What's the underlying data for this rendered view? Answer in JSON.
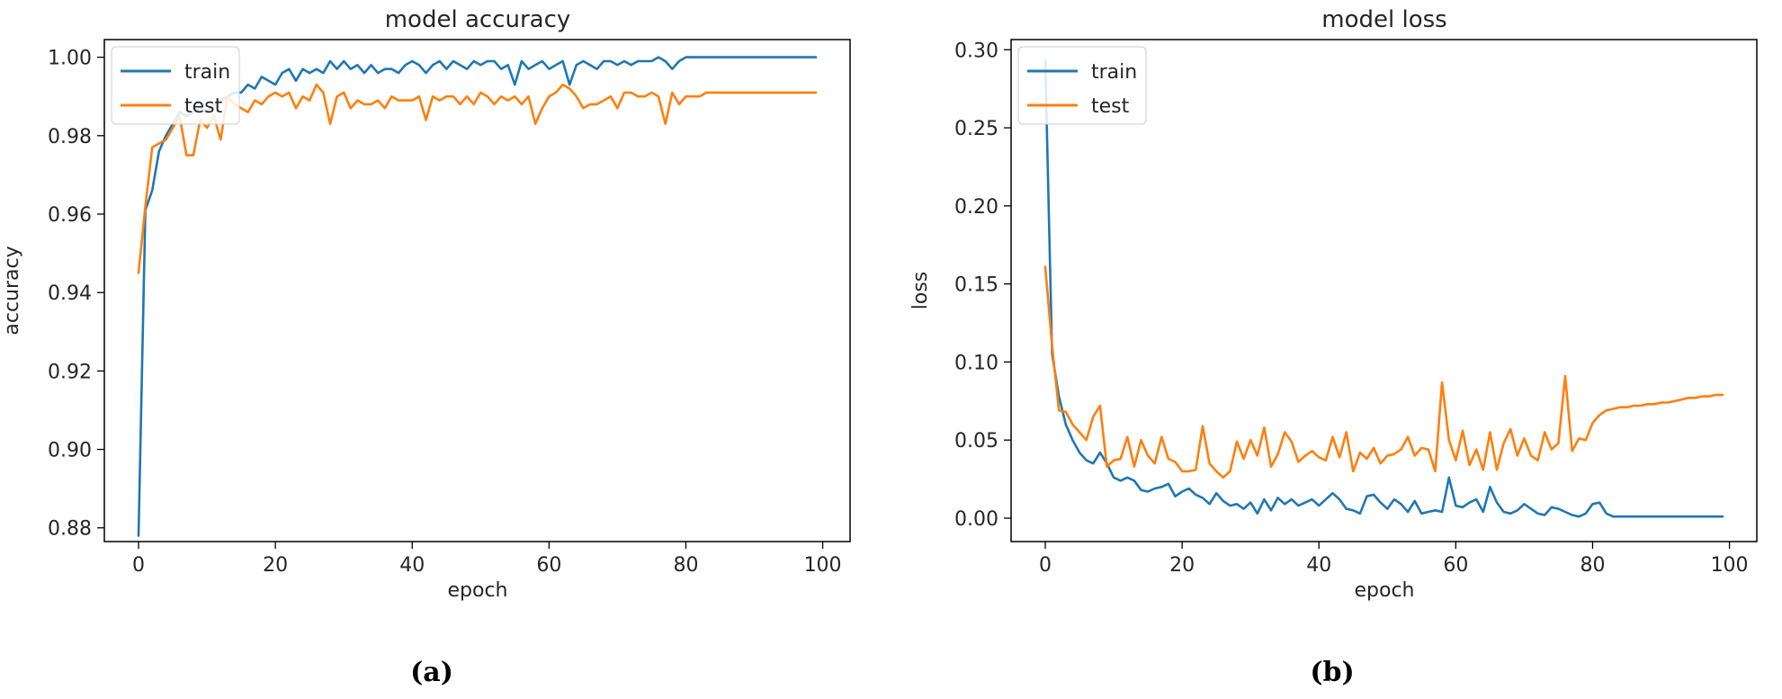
{
  "colors": {
    "train": "#1f77b4",
    "test": "#ff7f0e",
    "axes": "#000000",
    "text": "#262626"
  },
  "chart_data": [
    {
      "id": "acc",
      "type": "line",
      "title": "model accuracy",
      "xlabel": "epoch",
      "ylabel": "accuracy",
      "xlim": [
        -5,
        104
      ],
      "ylim": [
        0.8765,
        1.0045
      ],
      "xticks": [
        0,
        20,
        40,
        60,
        80,
        100
      ],
      "xtick_labels": [
        "0",
        "20",
        "40",
        "60",
        "80",
        "100"
      ],
      "yticks": [
        0.88,
        0.9,
        0.92,
        0.94,
        0.96,
        0.98,
        1.0
      ],
      "ytick_labels": [
        "0.88",
        "0.90",
        "0.92",
        "0.94",
        "0.96",
        "0.98",
        "1.00"
      ],
      "legend": {
        "location": "top-left",
        "entries": [
          "train",
          "test"
        ]
      },
      "caption": "(a)",
      "x": [
        0,
        1,
        2,
        3,
        4,
        5,
        6,
        7,
        8,
        9,
        10,
        11,
        12,
        13,
        14,
        15,
        16,
        17,
        18,
        19,
        20,
        21,
        22,
        23,
        24,
        25,
        26,
        27,
        28,
        29,
        30,
        31,
        32,
        33,
        34,
        35,
        36,
        37,
        38,
        39,
        40,
        41,
        42,
        43,
        44,
        45,
        46,
        47,
        48,
        49,
        50,
        51,
        52,
        53,
        54,
        55,
        56,
        57,
        58,
        59,
        60,
        61,
        62,
        63,
        64,
        65,
        66,
        67,
        68,
        69,
        70,
        71,
        72,
        73,
        74,
        75,
        76,
        77,
        78,
        79,
        80,
        81,
        82,
        83,
        84,
        85,
        86,
        87,
        88,
        89,
        90,
        91,
        92,
        93,
        94,
        95,
        96,
        97,
        98,
        99
      ],
      "series": [
        {
          "name": "train",
          "values": [
            0.878,
            0.961,
            0.966,
            0.976,
            0.98,
            0.983,
            0.986,
            0.985,
            0.986,
            0.987,
            0.986,
            0.988,
            0.989,
            0.99,
            0.991,
            0.991,
            0.993,
            0.992,
            0.995,
            0.994,
            0.993,
            0.996,
            0.997,
            0.994,
            0.997,
            0.996,
            0.997,
            0.996,
            0.999,
            0.997,
            0.999,
            0.997,
            0.998,
            0.996,
            0.998,
            0.996,
            0.997,
            0.997,
            0.996,
            0.998,
            0.999,
            0.998,
            0.996,
            0.998,
            0.999,
            0.997,
            0.999,
            0.998,
            0.997,
            0.999,
            0.998,
            0.999,
            0.999,
            0.997,
            0.998,
            0.993,
            0.999,
            0.997,
            0.998,
            0.999,
            0.997,
            0.998,
            0.999,
            0.993,
            0.998,
            0.999,
            0.998,
            0.997,
            0.999,
            0.999,
            0.998,
            0.999,
            0.998,
            0.999,
            0.999,
            0.999,
            1.0,
            0.999,
            0.997,
            0.999,
            1.0,
            1.0,
            1.0,
            1.0,
            1.0,
            1.0,
            1.0,
            1.0,
            1.0,
            1.0,
            1.0,
            1.0,
            1.0,
            1.0,
            1.0,
            1.0,
            1.0,
            1.0,
            1.0,
            1.0
          ]
        },
        {
          "name": "test",
          "values": [
            0.945,
            0.962,
            0.977,
            0.978,
            0.979,
            0.982,
            0.985,
            0.975,
            0.975,
            0.984,
            0.982,
            0.985,
            0.979,
            0.99,
            0.988,
            0.987,
            0.986,
            0.989,
            0.988,
            0.99,
            0.991,
            0.99,
            0.991,
            0.987,
            0.99,
            0.989,
            0.993,
            0.991,
            0.983,
            0.99,
            0.991,
            0.987,
            0.989,
            0.988,
            0.988,
            0.989,
            0.987,
            0.99,
            0.989,
            0.989,
            0.989,
            0.99,
            0.984,
            0.99,
            0.989,
            0.99,
            0.99,
            0.988,
            0.99,
            0.988,
            0.991,
            0.99,
            0.988,
            0.99,
            0.989,
            0.99,
            0.988,
            0.99,
            0.983,
            0.987,
            0.99,
            0.991,
            0.993,
            0.992,
            0.99,
            0.987,
            0.988,
            0.988,
            0.989,
            0.99,
            0.987,
            0.991,
            0.991,
            0.99,
            0.99,
            0.991,
            0.99,
            0.983,
            0.991,
            0.988,
            0.99,
            0.99,
            0.99,
            0.991,
            0.991,
            0.991,
            0.991,
            0.991,
            0.991,
            0.991,
            0.991,
            0.991,
            0.991,
            0.991,
            0.991,
            0.991,
            0.991,
            0.991,
            0.991,
            0.991
          ]
        }
      ]
    },
    {
      "id": "loss",
      "type": "line",
      "title": "model loss",
      "xlabel": "epoch",
      "ylabel": "loss",
      "xlim": [
        -5,
        104
      ],
      "ylim": [
        -0.015,
        0.3065
      ],
      "xticks": [
        0,
        20,
        40,
        60,
        80,
        100
      ],
      "xtick_labels": [
        "0",
        "20",
        "40",
        "60",
        "80",
        "100"
      ],
      "yticks": [
        0.0,
        0.05,
        0.1,
        0.15,
        0.2,
        0.25,
        0.3
      ],
      "ytick_labels": [
        "0.00",
        "0.05",
        "0.10",
        "0.15",
        "0.20",
        "0.25",
        "0.30"
      ],
      "legend": {
        "location": "top-left",
        "entries": [
          "train",
          "test"
        ]
      },
      "caption": "(b)",
      "x": [
        0,
        1,
        2,
        3,
        4,
        5,
        6,
        7,
        8,
        9,
        10,
        11,
        12,
        13,
        14,
        15,
        16,
        17,
        18,
        19,
        20,
        21,
        22,
        23,
        24,
        25,
        26,
        27,
        28,
        29,
        30,
        31,
        32,
        33,
        34,
        35,
        36,
        37,
        38,
        39,
        40,
        41,
        42,
        43,
        44,
        45,
        46,
        47,
        48,
        49,
        50,
        51,
        52,
        53,
        54,
        55,
        56,
        57,
        58,
        59,
        60,
        61,
        62,
        63,
        64,
        65,
        66,
        67,
        68,
        69,
        70,
        71,
        72,
        73,
        74,
        75,
        76,
        77,
        78,
        79,
        80,
        81,
        82,
        83,
        84,
        85,
        86,
        87,
        88,
        89,
        90,
        91,
        92,
        93,
        94,
        95,
        96,
        97,
        98,
        99
      ],
      "series": [
        {
          "name": "train",
          "values": [
            0.293,
            0.105,
            0.078,
            0.06,
            0.05,
            0.042,
            0.037,
            0.035,
            0.042,
            0.035,
            0.026,
            0.024,
            0.026,
            0.024,
            0.018,
            0.017,
            0.019,
            0.02,
            0.022,
            0.014,
            0.017,
            0.019,
            0.015,
            0.013,
            0.009,
            0.016,
            0.011,
            0.008,
            0.009,
            0.006,
            0.01,
            0.003,
            0.012,
            0.005,
            0.013,
            0.009,
            0.012,
            0.008,
            0.01,
            0.012,
            0.008,
            0.012,
            0.016,
            0.012,
            0.006,
            0.005,
            0.003,
            0.014,
            0.015,
            0.01,
            0.006,
            0.012,
            0.009,
            0.004,
            0.011,
            0.003,
            0.004,
            0.005,
            0.004,
            0.026,
            0.008,
            0.007,
            0.01,
            0.012,
            0.004,
            0.02,
            0.01,
            0.004,
            0.003,
            0.005,
            0.009,
            0.006,
            0.003,
            0.002,
            0.007,
            0.006,
            0.004,
            0.002,
            0.001,
            0.003,
            0.009,
            0.01,
            0.003,
            0.001,
            0.001,
            0.001,
            0.001,
            0.001,
            0.001,
            0.001,
            0.001,
            0.001,
            0.001,
            0.001,
            0.001,
            0.001,
            0.001,
            0.001,
            0.001,
            0.001
          ]
        },
        {
          "name": "test",
          "values": [
            0.161,
            0.11,
            0.069,
            0.068,
            0.06,
            0.055,
            0.05,
            0.065,
            0.072,
            0.033,
            0.037,
            0.038,
            0.052,
            0.033,
            0.05,
            0.04,
            0.035,
            0.052,
            0.038,
            0.036,
            0.03,
            0.03,
            0.031,
            0.059,
            0.035,
            0.03,
            0.026,
            0.03,
            0.049,
            0.038,
            0.05,
            0.04,
            0.058,
            0.033,
            0.041,
            0.055,
            0.049,
            0.036,
            0.04,
            0.043,
            0.039,
            0.037,
            0.052,
            0.039,
            0.055,
            0.03,
            0.042,
            0.038,
            0.045,
            0.035,
            0.04,
            0.041,
            0.044,
            0.052,
            0.04,
            0.045,
            0.044,
            0.03,
            0.087,
            0.05,
            0.037,
            0.056,
            0.034,
            0.044,
            0.031,
            0.055,
            0.031,
            0.048,
            0.057,
            0.04,
            0.051,
            0.04,
            0.037,
            0.055,
            0.044,
            0.048,
            0.091,
            0.043,
            0.051,
            0.05,
            0.061,
            0.066,
            0.069,
            0.07,
            0.071,
            0.071,
            0.072,
            0.072,
            0.073,
            0.073,
            0.074,
            0.074,
            0.075,
            0.076,
            0.077,
            0.077,
            0.078,
            0.078,
            0.079,
            0.079
          ]
        }
      ]
    }
  ]
}
